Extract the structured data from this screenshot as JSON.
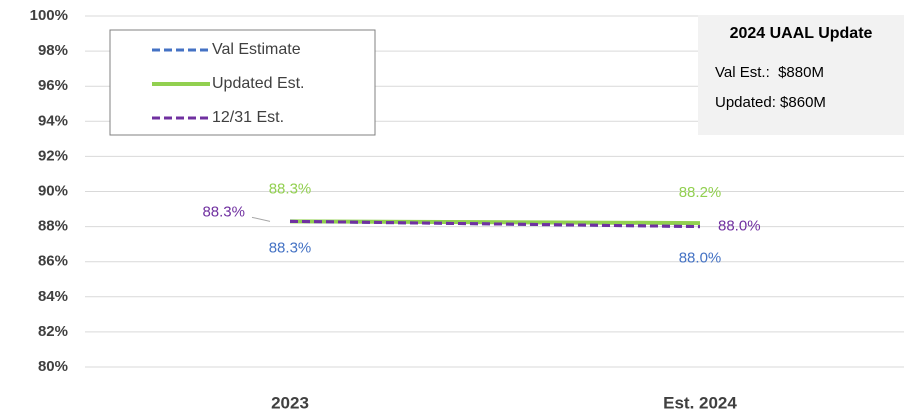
{
  "chart_data": {
    "type": "line",
    "categories": [
      "2023",
      "Est. 2024"
    ],
    "series": [
      {
        "name": "Val Estimate",
        "color": "#4472c4",
        "dash": true,
        "values": [
          88.3,
          88.0
        ],
        "value_labels": [
          "88.3%",
          "88.0%"
        ]
      },
      {
        "name": "Updated Est.",
        "color": "#92d050",
        "dash": false,
        "values": [
          88.3,
          88.2
        ],
        "value_labels": [
          "88.3%",
          "88.2%"
        ]
      },
      {
        "name": "12/31 Est.",
        "color": "#7030a0",
        "dash": true,
        "values": [
          88.3,
          88.0
        ],
        "value_labels": [
          "88.3%",
          "88.0%"
        ]
      }
    ],
    "ylim": [
      80,
      100
    ],
    "yticks": [
      {
        "value": 80,
        "label": "80%"
      },
      {
        "value": 82,
        "label": "82%"
      },
      {
        "value": 84,
        "label": "84%"
      },
      {
        "value": 86,
        "label": "86%"
      },
      {
        "value": 88,
        "label": "88%"
      },
      {
        "value": 90,
        "label": "90%"
      },
      {
        "value": 92,
        "label": "92%"
      },
      {
        "value": 94,
        "label": "94%"
      },
      {
        "value": 96,
        "label": "96%"
      },
      {
        "value": 98,
        "label": "98%"
      },
      {
        "value": 100,
        "label": "100%"
      }
    ],
    "grid": true,
    "annotation": {
      "title": "2024 UAAL Update",
      "lines": [
        "Val Est.:  $880M",
        "Updated: $860M"
      ]
    }
  }
}
